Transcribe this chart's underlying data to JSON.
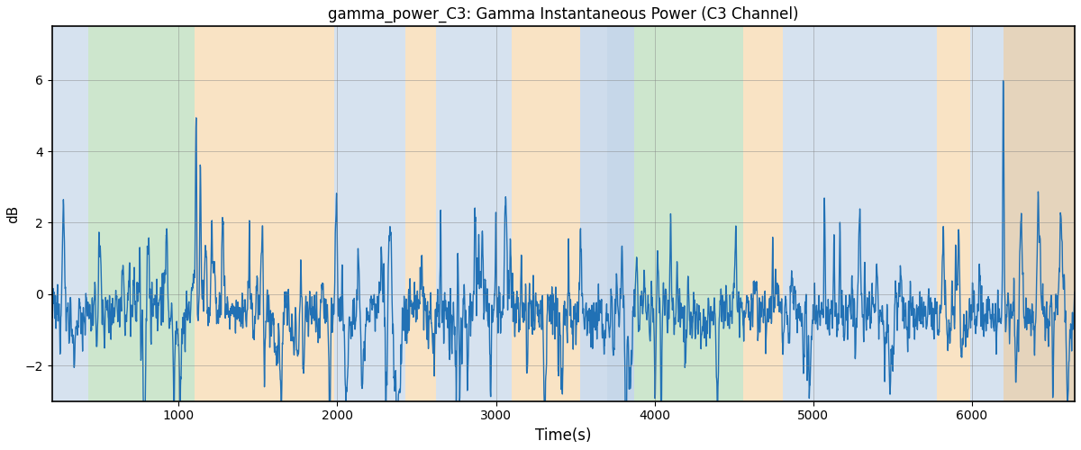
{
  "title": "gamma_power_C3: Gamma Instantaneous Power (C3 Channel)",
  "xlabel": "Time(s)",
  "ylabel": "dB",
  "xlim": [
    200,
    6650
  ],
  "ylim": [
    -3.0,
    7.5
  ],
  "yticks": [
    -2,
    0,
    2,
    4,
    6
  ],
  "xticks": [
    1000,
    2000,
    3000,
    4000,
    5000,
    6000
  ],
  "line_color": "#2171b5",
  "line_width": 1.0,
  "figsize": [
    12,
    5
  ],
  "dpi": 100,
  "background_bands": [
    {
      "xmin": 200,
      "xmax": 430,
      "color": "#aec6e0",
      "alpha": 0.5
    },
    {
      "xmin": 430,
      "xmax": 1100,
      "color": "#90c990",
      "alpha": 0.45
    },
    {
      "xmin": 1100,
      "xmax": 1980,
      "color": "#f5c88a",
      "alpha": 0.5
    },
    {
      "xmin": 1980,
      "xmax": 2430,
      "color": "#aec6e0",
      "alpha": 0.5
    },
    {
      "xmin": 2430,
      "xmax": 2620,
      "color": "#f5c88a",
      "alpha": 0.5
    },
    {
      "xmin": 2620,
      "xmax": 3100,
      "color": "#aec6e0",
      "alpha": 0.5
    },
    {
      "xmin": 3100,
      "xmax": 3530,
      "color": "#f5c88a",
      "alpha": 0.5
    },
    {
      "xmin": 3530,
      "xmax": 3700,
      "color": "#aec6e0",
      "alpha": 0.6
    },
    {
      "xmin": 3700,
      "xmax": 3870,
      "color": "#aec6e0",
      "alpha": 0.7
    },
    {
      "xmin": 3870,
      "xmax": 4560,
      "color": "#90c990",
      "alpha": 0.45
    },
    {
      "xmin": 4560,
      "xmax": 4810,
      "color": "#f5c88a",
      "alpha": 0.5
    },
    {
      "xmin": 4810,
      "xmax": 5780,
      "color": "#aec6e0",
      "alpha": 0.5
    },
    {
      "xmin": 5780,
      "xmax": 5990,
      "color": "#f5c88a",
      "alpha": 0.5
    },
    {
      "xmin": 5990,
      "xmax": 6650,
      "color": "#aec6e0",
      "alpha": 0.5
    },
    {
      "xmin": 6200,
      "xmax": 6650,
      "color": "#f5c88a",
      "alpha": 0.5
    }
  ]
}
